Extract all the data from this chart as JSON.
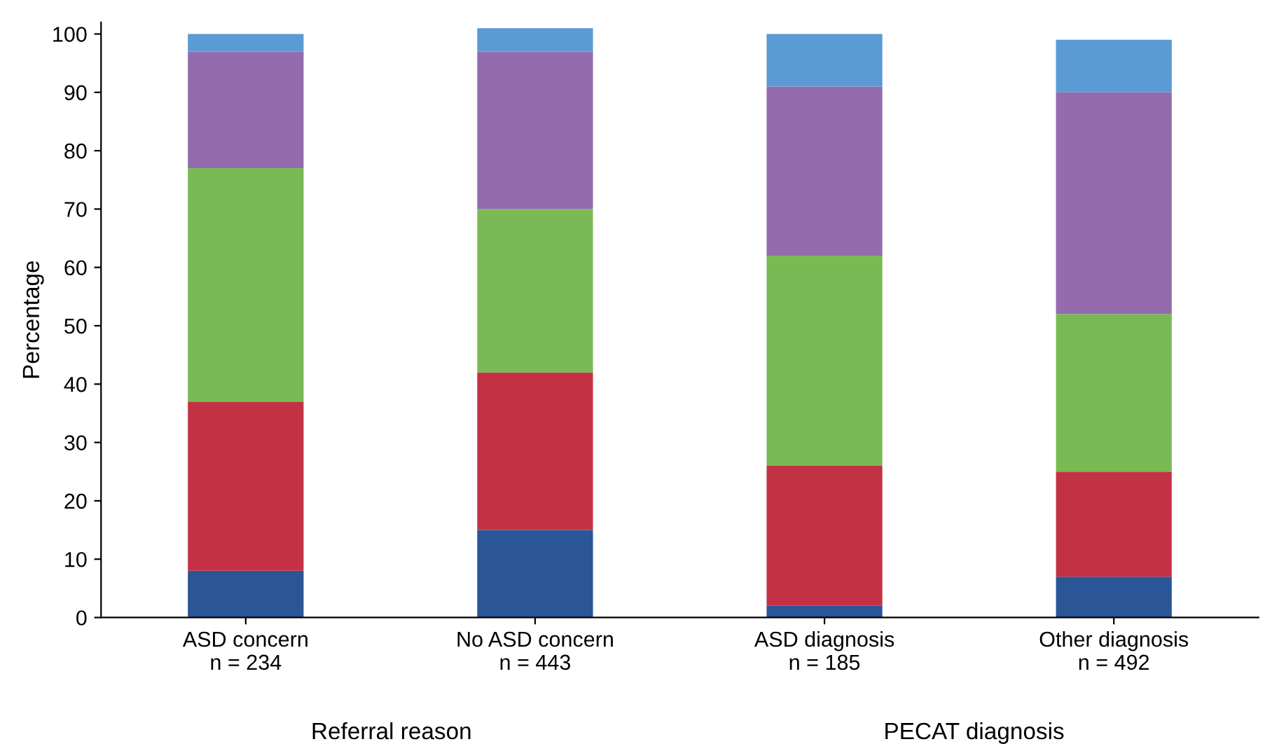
{
  "chart_data": {
    "type": "bar",
    "stacked": true,
    "ylabel": "Percentage",
    "categories": [
      "ASD concern\nn = 234",
      "No ASD concern\nn = 443",
      "ASD diagnosis\nn = 185",
      "Other diagnosis\nn = 492"
    ],
    "series": [
      {
        "color": "#2a5597",
        "values": [
          8,
          15,
          2,
          7
        ]
      },
      {
        "color": "#c33244",
        "values": [
          29,
          27,
          24,
          18
        ]
      },
      {
        "color": "#7aba55",
        "values": [
          40,
          28,
          36,
          27
        ]
      },
      {
        "color": "#946cad",
        "values": [
          20,
          27,
          29,
          38
        ]
      },
      {
        "color": "#5a9bd5",
        "values": [
          3,
          4,
          9,
          9
        ]
      }
    ],
    "ylim": [
      0,
      102
    ],
    "yticks": [
      0,
      10,
      20,
      30,
      40,
      50,
      60,
      70,
      80,
      90,
      100
    ],
    "annotations": [
      "Referral reason",
      "PECAT diagnosis"
    ],
    "grid": false,
    "legend": false
  }
}
